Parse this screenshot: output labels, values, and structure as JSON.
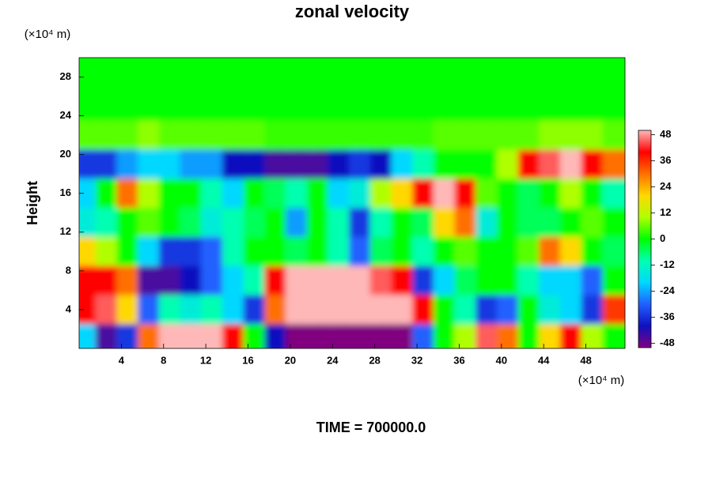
{
  "chart_data": {
    "type": "heatmap",
    "title": "zonal velocity",
    "ylabel": "Height",
    "xunits": "(×10⁴ m)",
    "yunits": "(×10⁴ m)",
    "footer": "TIME = 700000.0",
    "x": [
      1,
      3,
      5,
      7,
      9,
      11,
      13,
      15,
      17,
      19,
      21,
      23,
      25,
      27,
      29,
      31,
      33,
      35,
      37,
      39,
      41,
      43,
      45,
      47,
      49,
      51
    ],
    "y": [
      1.5,
      4.5,
      7.5,
      10.5,
      13.5,
      16.5,
      19.5,
      22.5,
      25.5,
      28.5
    ],
    "z": [
      [
        -20,
        -45,
        -35,
        30,
        50,
        50,
        50,
        40,
        0,
        -40,
        -50,
        -50,
        -50,
        -50,
        -50,
        -50,
        -30,
        0,
        10,
        45,
        30,
        0,
        20,
        40,
        10,
        0
      ],
      [
        40,
        45,
        20,
        -30,
        -10,
        -15,
        -10,
        -20,
        -35,
        30,
        50,
        50,
        50,
        50,
        50,
        50,
        40,
        0,
        -10,
        -35,
        -30,
        0,
        -15,
        -20,
        -35,
        35
      ],
      [
        40,
        40,
        30,
        -45,
        -45,
        -40,
        -30,
        -20,
        -10,
        40,
        50,
        50,
        50,
        50,
        45,
        40,
        -35,
        -20,
        -5,
        0,
        0,
        -10,
        -20,
        -20,
        -30,
        0
      ],
      [
        20,
        10,
        0,
        -20,
        -35,
        -35,
        -30,
        -10,
        0,
        0,
        -5,
        0,
        -10,
        -30,
        -5,
        0,
        -10,
        0,
        5,
        0,
        0,
        5,
        30,
        20,
        0,
        -5
      ],
      [
        -15,
        -10,
        0,
        5,
        0,
        -5,
        -15,
        -10,
        -5,
        0,
        -25,
        0,
        -10,
        -35,
        -10,
        0,
        -5,
        20,
        30,
        -15,
        0,
        -5,
        -5,
        0,
        5,
        0
      ],
      [
        -20,
        0,
        30,
        10,
        0,
        0,
        -10,
        -20,
        0,
        -5,
        -10,
        0,
        -20,
        -15,
        10,
        20,
        40,
        50,
        40,
        5,
        0,
        -5,
        0,
        10,
        0,
        -10
      ],
      [
        -35,
        -35,
        -25,
        -20,
        -20,
        -25,
        -25,
        -40,
        -40,
        -45,
        -45,
        -45,
        -40,
        -35,
        -40,
        -20,
        -10,
        0,
        0,
        0,
        10,
        40,
        45,
        50,
        40,
        30
      ],
      [
        5,
        5,
        5,
        8,
        5,
        5,
        5,
        5,
        5,
        3,
        3,
        3,
        3,
        3,
        3,
        3,
        3,
        5,
        5,
        5,
        5,
        5,
        8,
        8,
        8,
        5
      ],
      [
        0,
        0,
        0,
        0,
        0,
        0,
        0,
        0,
        0,
        0,
        0,
        0,
        0,
        0,
        0,
        0,
        0,
        0,
        0,
        0,
        0,
        0,
        0,
        0,
        0,
        0
      ],
      [
        0,
        0,
        0,
        0,
        0,
        0,
        0,
        0,
        0,
        0,
        0,
        0,
        0,
        0,
        0,
        0,
        0,
        0,
        0,
        0,
        0,
        0,
        0,
        0,
        0,
        0
      ]
    ],
    "xlim": [
      0,
      51.7
    ],
    "ylim": [
      0,
      30
    ],
    "xticks": [
      4,
      8,
      12,
      16,
      20,
      24,
      28,
      32,
      36,
      40,
      44,
      48
    ],
    "yticks": [
      4,
      8,
      12,
      16,
      20,
      24,
      28
    ],
    "zlim": [
      -50,
      50
    ],
    "zticks": [
      -48,
      -36,
      -24,
      -12,
      0,
      12,
      24,
      36,
      48
    ],
    "colorscale": [
      "#800080",
      "#1010c0",
      "#2060ff",
      "#00d8ff",
      "#00ffb0",
      "#00ff00",
      "#b0ff00",
      "#ffd800",
      "#ff7000",
      "#ff0000",
      "#ffb8b8"
    ]
  }
}
